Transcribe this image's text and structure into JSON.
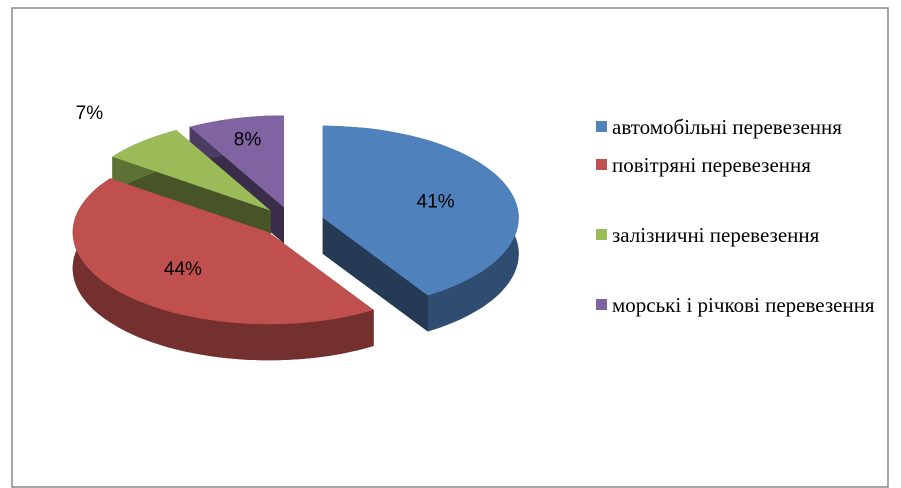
{
  "chart_data": {
    "type": "pie",
    "categories": [
      "автомобільні перевезення",
      "повітряні перевезення",
      "залізничні перевезення",
      "морські і річкові перевезення"
    ],
    "values": [
      41,
      44,
      7,
      8
    ],
    "value_labels": [
      "41%",
      "44%",
      "7%",
      "8%"
    ],
    "colors": [
      "#4f81bd",
      "#c0504d",
      "#9bbb59",
      "#8064a2"
    ],
    "legend": "right"
  }
}
